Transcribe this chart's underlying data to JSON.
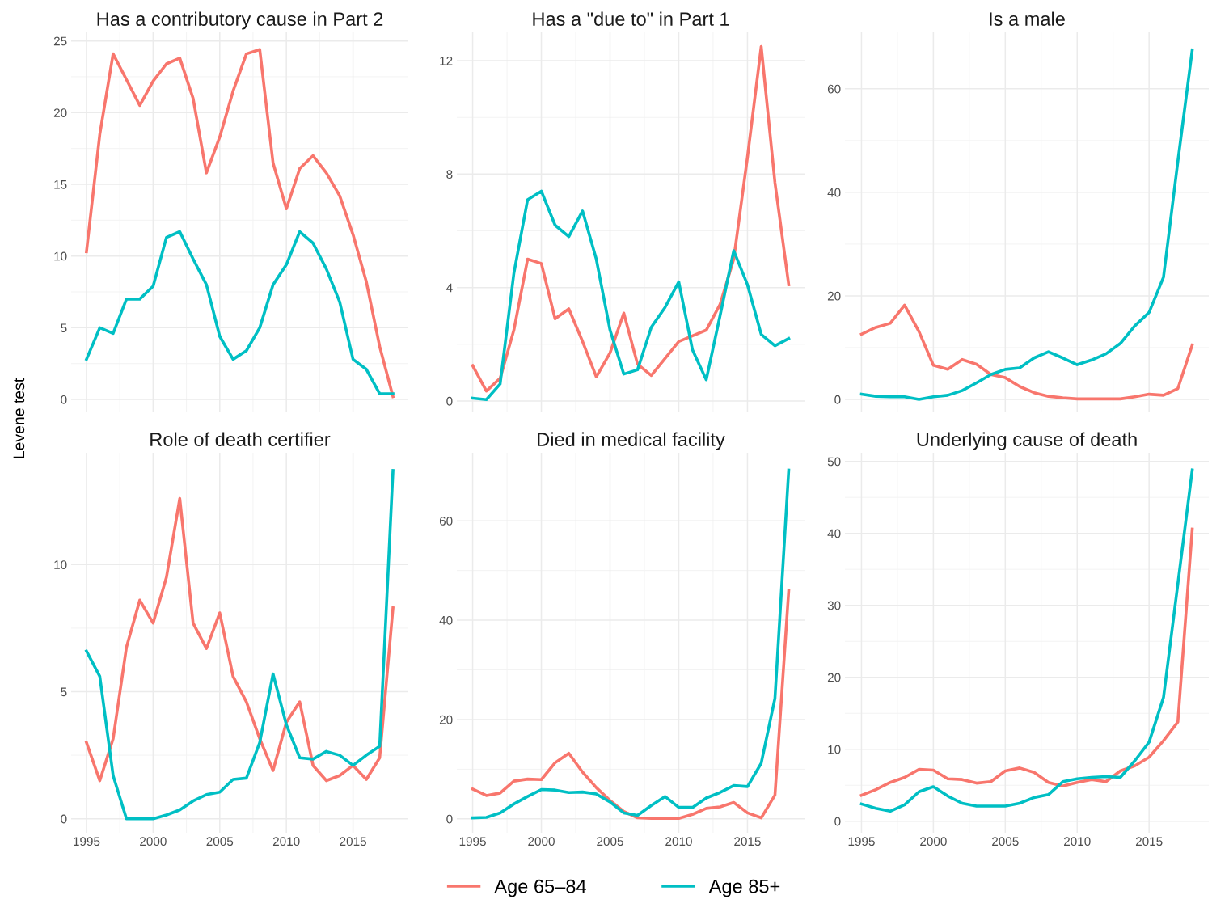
{
  "chart_data": [
    {
      "type": "line",
      "title": "Has a contributory cause in Part 2",
      "legend": "bottom",
      "x": [
        1995,
        1996,
        1997,
        1998,
        1999,
        2000,
        2001,
        2002,
        2003,
        2004,
        2005,
        2006,
        2007,
        2008,
        2009,
        2010,
        2011,
        2012,
        2013,
        2014,
        2015,
        2016,
        2017,
        2018
      ],
      "xlim": [
        1993.85,
        2019.15
      ],
      "xticks": [
        1995,
        2000,
        2005,
        2010,
        2015
      ],
      "ylim": [
        -0.9,
        25.6
      ],
      "yticks": [
        0,
        5,
        10,
        15,
        20,
        25
      ],
      "grid": true,
      "tick_labels": "y",
      "series": [
        {
          "name": "Age 65–84",
          "color": "#f8766d",
          "values": [
            10.3,
            18.5,
            24.1,
            22.3,
            20.5,
            22.2,
            23.4,
            23.8,
            21.0,
            15.8,
            18.3,
            21.5,
            24.1,
            24.4,
            16.5,
            13.3,
            16.1,
            17.0,
            15.8,
            14.2,
            11.5,
            8.2,
            3.7,
            0.2
          ]
        },
        {
          "name": "Age 85+",
          "color": "#00bfc4",
          "values": [
            2.8,
            5.0,
            4.6,
            7.0,
            7.0,
            7.9,
            11.3,
            11.7,
            9.8,
            8.0,
            4.4,
            2.8,
            3.4,
            5.0,
            8.0,
            9.4,
            11.7,
            10.9,
            9.1,
            6.8,
            2.8,
            2.1,
            0.4,
            0.4
          ]
        }
      ]
    },
    {
      "type": "line",
      "title": "Has a \"due to\" in Part 1",
      "x": [
        1995,
        1996,
        1997,
        1998,
        1999,
        2000,
        2001,
        2002,
        2003,
        2004,
        2005,
        2006,
        2007,
        2008,
        2009,
        2010,
        2011,
        2012,
        2013,
        2014,
        2015,
        2016,
        2017,
        2018
      ],
      "xlim": [
        1993.85,
        2019.15
      ],
      "xticks": [
        1995,
        2000,
        2005,
        2010,
        2015
      ],
      "ylim": [
        -0.4,
        13.0
      ],
      "yticks": [
        0,
        4,
        8,
        12
      ],
      "grid": true,
      "tick_labels": "y",
      "series": [
        {
          "color": "#f8766d",
          "values": [
            1.25,
            0.35,
            0.8,
            2.5,
            5.0,
            4.85,
            2.9,
            3.25,
            2.1,
            0.85,
            1.7,
            3.1,
            1.3,
            0.9,
            1.5,
            2.1,
            2.3,
            2.5,
            3.4,
            5.0,
            8.6,
            12.5,
            7.7,
            4.1
          ]
        },
        {
          "color": "#00bfc4",
          "values": [
            0.1,
            0.05,
            0.6,
            4.5,
            7.1,
            7.4,
            6.2,
            5.8,
            6.7,
            5.0,
            2.5,
            0.95,
            1.1,
            2.6,
            3.3,
            4.2,
            1.8,
            0.75,
            3.0,
            5.3,
            4.1,
            2.35,
            1.95,
            2.2
          ]
        }
      ]
    },
    {
      "type": "line",
      "title": "Is a male",
      "x": [
        1995,
        1996,
        1997,
        1998,
        1999,
        2000,
        2001,
        2002,
        2003,
        2004,
        2005,
        2006,
        2007,
        2008,
        2009,
        2010,
        2011,
        2012,
        2013,
        2014,
        2015,
        2016,
        2017,
        2018
      ],
      "xlim": [
        1993.85,
        2019.15
      ],
      "xticks": [
        1995,
        2000,
        2005,
        2010,
        2015
      ],
      "ylim": [
        -2.5,
        70.9
      ],
      "yticks": [
        0,
        20,
        40,
        60
      ],
      "grid": true,
      "tick_labels": "y",
      "series": [
        {
          "color": "#f8766d",
          "values": [
            12.6,
            13.9,
            14.7,
            18.2,
            13.1,
            6.6,
            5.8,
            7.7,
            6.8,
            4.8,
            4.2,
            2.5,
            1.3,
            0.6,
            0.3,
            0.1,
            0.1,
            0.1,
            0.1,
            0.5,
            1.0,
            0.8,
            2.1,
            10.5
          ]
        },
        {
          "color": "#00bfc4",
          "values": [
            1.0,
            0.6,
            0.5,
            0.5,
            0.0,
            0.5,
            0.8,
            1.7,
            3.2,
            4.8,
            5.8,
            6.1,
            8.0,
            9.2,
            8.0,
            6.7,
            7.6,
            8.8,
            10.8,
            14.2,
            16.8,
            23.6,
            46.0,
            67.5
          ]
        }
      ]
    },
    {
      "type": "line",
      "title": "Role of death certifier",
      "ylabel": "Levene test",
      "x": [
        1995,
        1996,
        1997,
        1998,
        1999,
        2000,
        2001,
        2002,
        2003,
        2004,
        2005,
        2006,
        2007,
        2008,
        2009,
        2010,
        2011,
        2012,
        2013,
        2014,
        2015,
        2016,
        2017,
        2018
      ],
      "xlim": [
        1993.85,
        2019.15
      ],
      "xticks": [
        1995,
        2000,
        2005,
        2010,
        2015
      ],
      "ylim": [
        -0.55,
        14.4
      ],
      "yticks": [
        0,
        5,
        10
      ],
      "grid": true,
      "series": [
        {
          "color": "#f8766d",
          "values": [
            3.0,
            1.5,
            3.15,
            6.75,
            8.6,
            7.7,
            9.5,
            12.6,
            7.7,
            6.7,
            8.1,
            5.6,
            4.6,
            3.15,
            1.9,
            3.8,
            4.6,
            2.1,
            1.5,
            1.7,
            2.1,
            1.55,
            2.4,
            8.3
          ]
        },
        {
          "color": "#00bfc4",
          "values": [
            6.6,
            5.6,
            1.7,
            0.0,
            0.0,
            0.0,
            0.15,
            0.35,
            0.7,
            0.95,
            1.05,
            1.55,
            1.6,
            3.0,
            5.7,
            3.7,
            2.4,
            2.35,
            2.65,
            2.5,
            2.1,
            2.5,
            2.85,
            13.7
          ]
        }
      ]
    },
    {
      "type": "line",
      "title": "Died in medical facility",
      "x": [
        1995,
        1996,
        1997,
        1998,
        1999,
        2000,
        2001,
        2002,
        2003,
        2004,
        2005,
        2006,
        2007,
        2008,
        2009,
        2010,
        2011,
        2012,
        2013,
        2014,
        2015,
        2016,
        2017,
        2018
      ],
      "xlim": [
        1993.85,
        2019.15
      ],
      "xticks": [
        1995,
        2000,
        2005,
        2010,
        2015
      ],
      "ylim": [
        -2.8,
        73.7
      ],
      "yticks": [
        0,
        20,
        40,
        60
      ],
      "grid": true,
      "series": [
        {
          "color": "#f8766d",
          "values": [
            6.0,
            4.7,
            5.2,
            7.6,
            8.0,
            7.9,
            11.3,
            13.2,
            9.4,
            6.3,
            3.7,
            1.5,
            0.2,
            0.1,
            0.1,
            0.1,
            0.9,
            2.1,
            2.4,
            3.3,
            1.2,
            0.2,
            4.8,
            45.9
          ]
        },
        {
          "color": "#00bfc4",
          "values": [
            0.2,
            0.3,
            1.2,
            3.0,
            4.5,
            5.9,
            5.8,
            5.3,
            5.4,
            5.0,
            3.4,
            1.2,
            0.7,
            2.7,
            4.5,
            2.3,
            2.3,
            4.2,
            5.3,
            6.7,
            6.5,
            11.2,
            24.3,
            70.2
          ]
        }
      ]
    },
    {
      "type": "line",
      "title": "Underlying cause of death",
      "x": [
        1995,
        1996,
        1997,
        1998,
        1999,
        2000,
        2001,
        2002,
        2003,
        2004,
        2005,
        2006,
        2007,
        2008,
        2009,
        2010,
        2011,
        2012,
        2013,
        2014,
        2015,
        2016,
        2017,
        2018
      ],
      "xlim": [
        1993.85,
        2019.15
      ],
      "xticks": [
        1995,
        2000,
        2005,
        2010,
        2015
      ],
      "ylim": [
        -1.6,
        51.2
      ],
      "yticks": [
        0,
        10,
        20,
        30,
        40,
        50
      ],
      "grid": true,
      "series": [
        {
          "color": "#f8766d",
          "values": [
            3.6,
            4.4,
            5.4,
            6.1,
            7.2,
            7.1,
            5.9,
            5.8,
            5.3,
            5.5,
            7.0,
            7.4,
            6.8,
            5.4,
            4.9,
            5.4,
            5.8,
            5.5,
            7.0,
            7.7,
            8.9,
            11.2,
            13.8,
            40.6
          ]
        },
        {
          "color": "#00bfc4",
          "values": [
            2.4,
            1.8,
            1.4,
            2.3,
            4.1,
            4.8,
            3.5,
            2.5,
            2.1,
            2.1,
            2.1,
            2.5,
            3.3,
            3.7,
            5.5,
            5.9,
            6.1,
            6.2,
            6.1,
            8.4,
            11.0,
            17.2,
            33.0,
            48.8
          ]
        }
      ]
    }
  ]
}
